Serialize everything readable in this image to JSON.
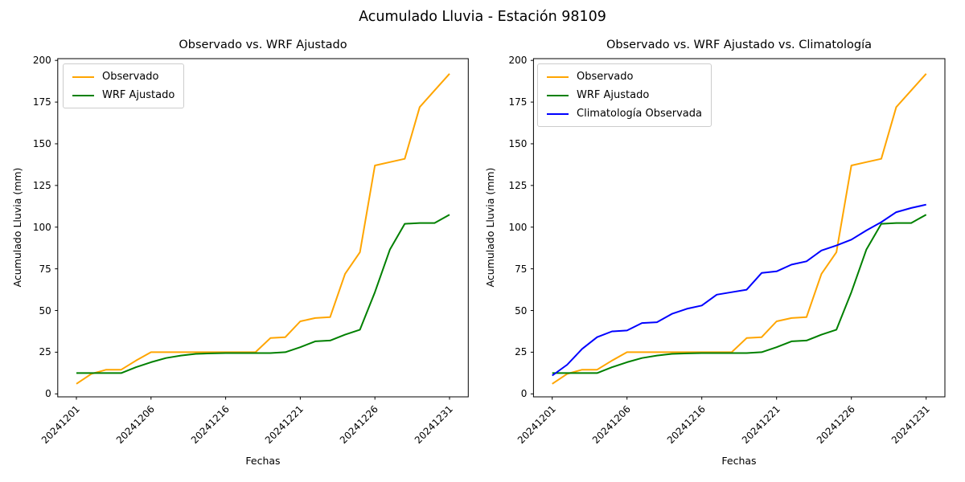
{
  "figure_title": "Acumulado Lluvia - Estación 98109",
  "colors": {
    "observado": "#FFA500",
    "wrf_ajustado": "#008000",
    "climatologia": "#0000FF",
    "axis": "#000000",
    "legend_border": "#cccccc"
  },
  "chart_data": [
    {
      "type": "line",
      "title": "Observado vs. WRF Ajustado",
      "xlabel": "Fechas",
      "ylabel": "Acumulado Lluvia (mm)",
      "ylim": [
        0,
        200
      ],
      "yticks": [
        0,
        25,
        50,
        75,
        100,
        125,
        150,
        175,
        200
      ],
      "grid": false,
      "legend_position": "upper-left",
      "x": [
        "20241201",
        "20241202",
        "20241203",
        "20241204",
        "20241205",
        "20241206",
        "20241207",
        "20241208",
        "20241209",
        "20241210",
        "20241216",
        "20241217",
        "20241218",
        "20241219",
        "20241220",
        "20241221",
        "20241222",
        "20241223",
        "20241224",
        "20241225",
        "20241226",
        "20241227",
        "20241228",
        "20241229",
        "20241230",
        "20241231"
      ],
      "xticks": [
        {
          "index": 0,
          "label": "20241201"
        },
        {
          "index": 5,
          "label": "20241206"
        },
        {
          "index": 10,
          "label": "20241216"
        },
        {
          "index": 15,
          "label": "20241221"
        },
        {
          "index": 20,
          "label": "20241226"
        },
        {
          "index": 25,
          "label": "20241231"
        }
      ],
      "series": [
        {
          "name": "Observado",
          "color": "#FFA500",
          "values": [
            6,
            12,
            14.5,
            14.5,
            20,
            25,
            25,
            25,
            25,
            25,
            25,
            25,
            25,
            33.5,
            34,
            43.5,
            45.5,
            46,
            72,
            85,
            137,
            139,
            141,
            172,
            182,
            192
          ]
        },
        {
          "name": "WRF Ajustado",
          "color": "#008000",
          "values": [
            12.5,
            12.5,
            12.5,
            12.5,
            16,
            19,
            21.5,
            23,
            24,
            24.3,
            24.5,
            24.5,
            24.5,
            24.5,
            25,
            28,
            31.5,
            32,
            35.5,
            38.5,
            61,
            86.5,
            102,
            102.5,
            102.5,
            107.5
          ]
        }
      ]
    },
    {
      "type": "line",
      "title": "Observado vs. WRF Ajustado vs. Climatología",
      "xlabel": "Fechas",
      "ylabel": "Acumulado Lluvia (mm)",
      "ylim": [
        0,
        200
      ],
      "yticks": [
        0,
        25,
        50,
        75,
        100,
        125,
        150,
        175,
        200
      ],
      "grid": false,
      "legend_position": "upper-left",
      "x": [
        "20241201",
        "20241202",
        "20241203",
        "20241204",
        "20241205",
        "20241206",
        "20241207",
        "20241208",
        "20241209",
        "20241210",
        "20241216",
        "20241217",
        "20241218",
        "20241219",
        "20241220",
        "20241221",
        "20241222",
        "20241223",
        "20241224",
        "20241225",
        "20241226",
        "20241227",
        "20241228",
        "20241229",
        "20241230",
        "20241231"
      ],
      "xticks": [
        {
          "index": 0,
          "label": "20241201"
        },
        {
          "index": 5,
          "label": "20241206"
        },
        {
          "index": 10,
          "label": "20241216"
        },
        {
          "index": 15,
          "label": "20241221"
        },
        {
          "index": 20,
          "label": "20241226"
        },
        {
          "index": 25,
          "label": "20241231"
        }
      ],
      "series": [
        {
          "name": "Observado",
          "color": "#FFA500",
          "values": [
            6,
            12,
            14.5,
            14.5,
            20,
            25,
            25,
            25,
            25,
            25,
            25,
            25,
            25,
            33.5,
            34,
            43.5,
            45.5,
            46,
            72,
            85,
            137,
            139,
            141,
            172,
            182,
            192
          ]
        },
        {
          "name": "WRF Ajustado",
          "color": "#008000",
          "values": [
            12.5,
            12.5,
            12.5,
            12.5,
            16,
            19,
            21.5,
            23,
            24,
            24.3,
            24.5,
            24.5,
            24.5,
            24.5,
            25,
            28,
            31.5,
            32,
            35.5,
            38.5,
            61,
            86.5,
            102,
            102.5,
            102.5,
            107.5
          ]
        },
        {
          "name": "Climatología Observada",
          "color": "#0000FF",
          "values": [
            11,
            17.5,
            27,
            34,
            37.5,
            38,
            42.5,
            43,
            48,
            51,
            53,
            59.5,
            61,
            62.5,
            72.5,
            73.5,
            77.5,
            79.5,
            86,
            89,
            92.5,
            98,
            103,
            109,
            111.5,
            113.5
          ]
        }
      ]
    }
  ]
}
